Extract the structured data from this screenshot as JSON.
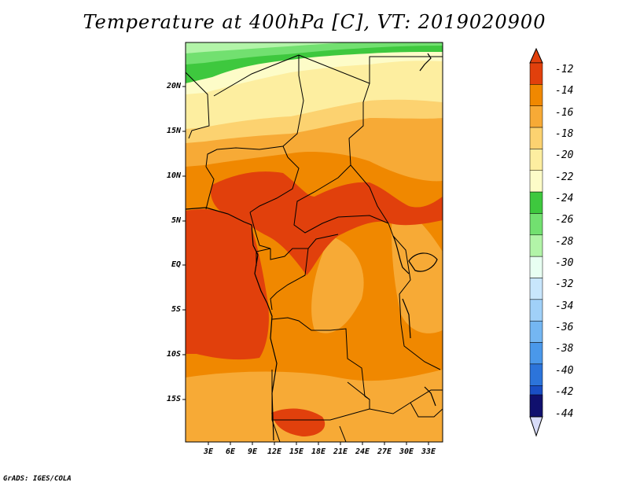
{
  "title": "Temperature at 400hPa [C], VT: 2019020900",
  "credit": "GrADS: IGES/COLA",
  "map": {
    "lat_labels": [
      "20N",
      "15N",
      "10N",
      "5N",
      "EQ",
      "5S",
      "10S",
      "15S"
    ],
    "lon_labels": [
      "3E",
      "6E",
      "9E",
      "12E",
      "15E",
      "18E",
      "21E",
      "24E",
      "27E",
      "30E",
      "33E"
    ]
  },
  "colorbar": {
    "labels": [
      "-12",
      "-14",
      "-16",
      "-18",
      "-20",
      "-22",
      "-24",
      "-26",
      "-28",
      "-30",
      "-32",
      "-34",
      "-36",
      "-38",
      "-40",
      "-42",
      "-44"
    ],
    "colors": [
      "#e1400c",
      "#f08800",
      "#f7aa36",
      "#fcd270",
      "#fdeea0",
      "#fdfcc8",
      "#3ec83e",
      "#72e070",
      "#b2f4a8",
      "#e8fff2",
      "#c8e6fc",
      "#a0d0f8",
      "#74b6f2",
      "#4a98ea",
      "#2c74da",
      "#1a4ec4",
      "#0e2aa4",
      "#10106e",
      "#d8dcf8"
    ]
  },
  "colors": {
    "frame": "#000000",
    "border": "#000000"
  }
}
